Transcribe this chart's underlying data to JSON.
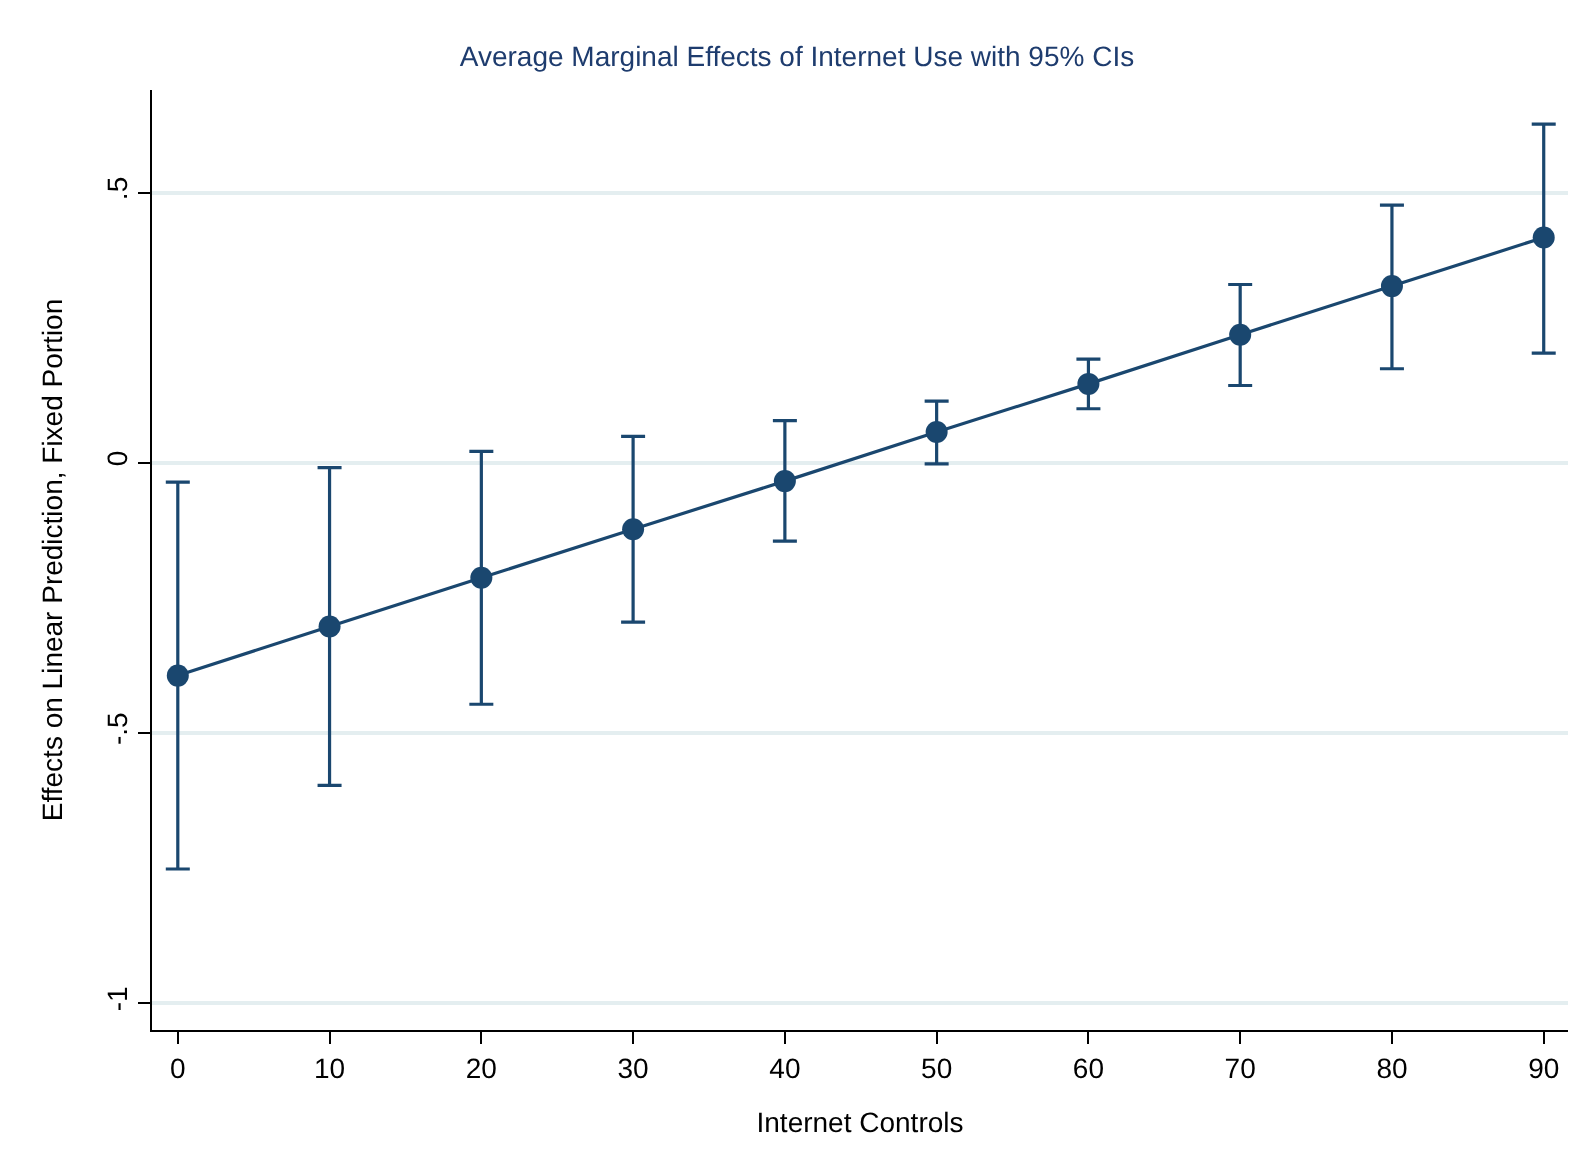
{
  "chart_data": {
    "type": "line",
    "title": "Average Marginal Effects of Internet Use with 95% CIs",
    "xlabel": "Internet Controls",
    "ylabel": "Effects on Linear Prediction, Fixed Portion",
    "x": [
      0,
      10,
      20,
      30,
      40,
      50,
      60,
      70,
      80,
      90
    ],
    "series": [
      {
        "color": "#1a476f",
        "values": [
          -0.394,
          -0.303,
          -0.213,
          -0.123,
          -0.034,
          0.057,
          0.146,
          0.237,
          0.327,
          0.417
        ],
        "errors": [
          [
            -0.752,
            -0.036
          ],
          [
            -0.597,
            -0.009
          ],
          [
            -0.447,
            0.021
          ],
          [
            -0.295,
            0.049
          ],
          [
            -0.145,
            0.078
          ],
          [
            -0.002,
            0.114
          ],
          [
            0.1,
            0.192
          ],
          [
            0.143,
            0.33
          ],
          [
            0.174,
            0.477
          ],
          [
            0.203,
            0.627
          ]
        ]
      }
    ],
    "xlim": [
      -1.7,
      91.6
    ],
    "ylim": [
      -1.05,
      0.69
    ],
    "xticks": [
      0,
      10,
      20,
      30,
      40,
      50,
      60,
      70,
      80,
      90
    ],
    "yticks": [
      {
        "value": -1,
        "label": "-1"
      },
      {
        "value": -0.5,
        "label": "-.5"
      },
      {
        "value": 0,
        "label": "0"
      },
      {
        "value": 0.5,
        "label": ".5"
      }
    ],
    "grid": "y",
    "marker": "circle",
    "line_style": "solid"
  }
}
